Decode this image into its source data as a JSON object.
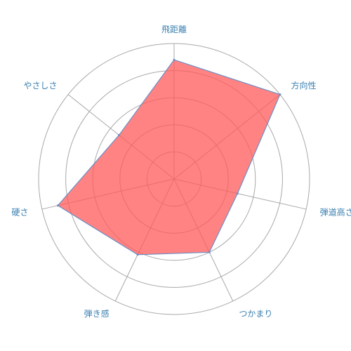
{
  "chart_data": {
    "type": "radar",
    "axes": [
      "飛距離",
      "方向性",
      "弾道高さ",
      "つかまり",
      "弾き感",
      "硬さ",
      "やさしさ"
    ],
    "series": [
      {
        "values": [
          4.4,
          5.0,
          2.4,
          3.0,
          3.1,
          4.4,
          2.6
        ]
      }
    ],
    "rmax": 5,
    "rings": 5,
    "grid": true,
    "colors": {
      "fill": "#ff5a5a",
      "fill_opacity": 0.75,
      "stroke": "#6b8fc4",
      "grid": "#a8a8a8",
      "label": "#3a7fb0"
    }
  }
}
